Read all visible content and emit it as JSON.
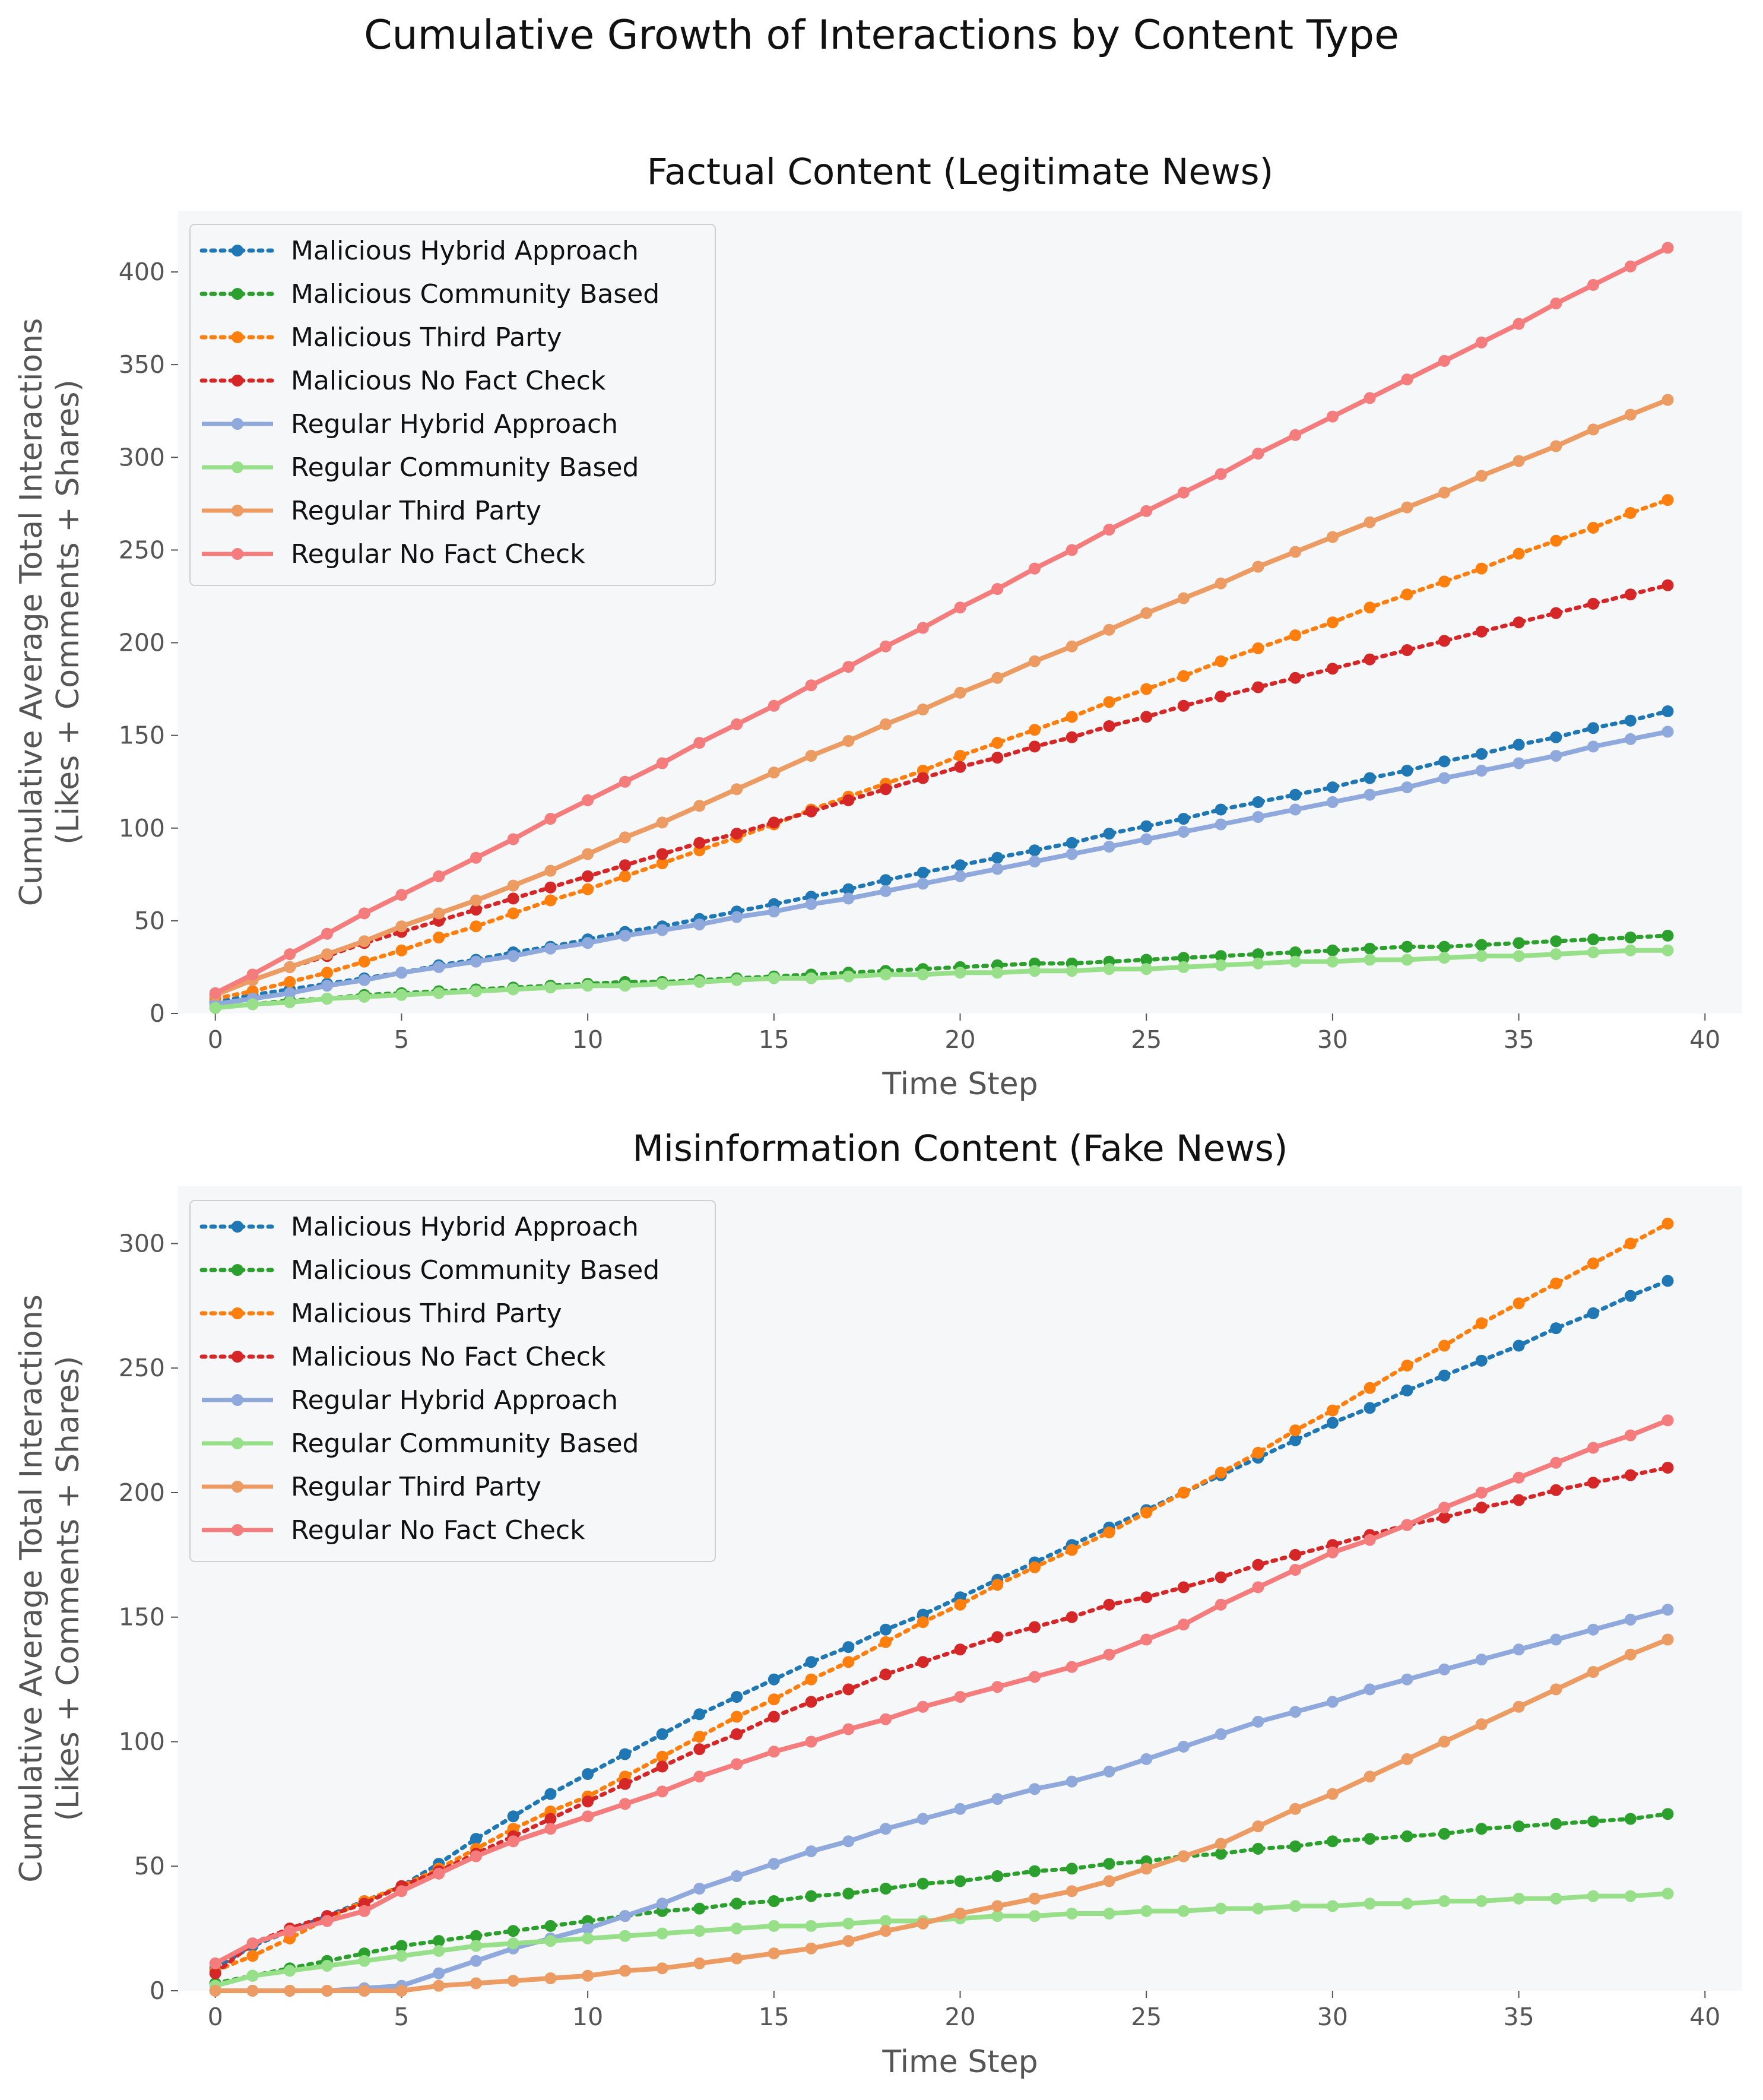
{
  "suptitle": "Cumulative Growth of Interactions by Content Type",
  "chart_data": [
    {
      "type": "line",
      "title": "Factual Content (Legitimate News)",
      "xlabel": "Time Step",
      "ylabel": [
        "Cumulative Average Total Interactions",
        "(Likes + Comments + Shares)"
      ],
      "xlim": [
        -1,
        41
      ],
      "ylim": [
        0,
        433
      ],
      "xticks": [
        0,
        5,
        10,
        15,
        20,
        25,
        30,
        35,
        40
      ],
      "yticks": [
        0,
        50,
        100,
        150,
        200,
        250,
        300,
        350,
        400
      ],
      "grid": false,
      "legend_position": "top-left",
      "x": [
        0,
        1,
        2,
        3,
        4,
        5,
        6,
        7,
        8,
        9,
        10,
        11,
        12,
        13,
        14,
        15,
        16,
        17,
        18,
        19,
        20,
        21,
        22,
        23,
        24,
        25,
        26,
        27,
        28,
        29,
        30,
        31,
        32,
        33,
        34,
        35,
        36,
        37,
        38,
        39
      ],
      "series": [
        {
          "name": "Malicious Hybrid Approach",
          "style": "dotted",
          "color": "#1f77b4",
          "values": [
            6,
            10,
            13,
            16,
            19,
            22,
            26,
            29,
            33,
            36,
            40,
            44,
            47,
            51,
            55,
            59,
            63,
            67,
            72,
            76,
            80,
            84,
            88,
            92,
            97,
            101,
            105,
            110,
            114,
            118,
            122,
            127,
            131,
            136,
            140,
            145,
            149,
            154,
            158,
            163
          ]
        },
        {
          "name": "Malicious Community Based",
          "style": "dotted",
          "color": "#2ca02c",
          "values": [
            3,
            5,
            7,
            8,
            10,
            11,
            12,
            13,
            14,
            15,
            16,
            17,
            17,
            18,
            19,
            20,
            21,
            22,
            23,
            24,
            25,
            26,
            27,
            27,
            28,
            29,
            30,
            31,
            32,
            33,
            34,
            35,
            36,
            36,
            37,
            38,
            39,
            40,
            41,
            42
          ]
        },
        {
          "name": "Malicious Third Party",
          "style": "dotted",
          "color": "#ff7f0e",
          "values": [
            8,
            12,
            17,
            22,
            28,
            34,
            41,
            47,
            54,
            61,
            67,
            74,
            81,
            88,
            95,
            102,
            110,
            117,
            124,
            131,
            139,
            146,
            153,
            160,
            168,
            175,
            182,
            190,
            197,
            204,
            211,
            219,
            226,
            233,
            240,
            248,
            255,
            262,
            270,
            277
          ]
        },
        {
          "name": "Malicious No Fact Check",
          "style": "dotted",
          "color": "#d62728",
          "values": [
            10,
            18,
            25,
            31,
            38,
            44,
            50,
            56,
            62,
            68,
            74,
            80,
            86,
            92,
            97,
            103,
            109,
            115,
            121,
            127,
            133,
            138,
            144,
            149,
            155,
            160,
            166,
            171,
            176,
            181,
            186,
            191,
            196,
            201,
            206,
            211,
            216,
            221,
            226,
            231
          ]
        },
        {
          "name": "Regular Hybrid Approach",
          "style": "solid",
          "color": "#8fa9dc",
          "values": [
            5,
            8,
            11,
            15,
            18,
            22,
            25,
            28,
            31,
            35,
            38,
            42,
            45,
            48,
            52,
            55,
            59,
            62,
            66,
            70,
            74,
            78,
            82,
            86,
            90,
            94,
            98,
            102,
            106,
            110,
            114,
            118,
            122,
            127,
            131,
            135,
            139,
            144,
            148,
            152
          ]
        },
        {
          "name": "Regular Community Based",
          "style": "solid",
          "color": "#98df8a",
          "values": [
            3,
            5,
            6,
            8,
            9,
            10,
            11,
            12,
            13,
            14,
            15,
            15,
            16,
            17,
            18,
            19,
            19,
            20,
            21,
            21,
            22,
            22,
            23,
            23,
            24,
            24,
            25,
            26,
            27,
            28,
            28,
            29,
            29,
            30,
            31,
            31,
            32,
            33,
            34,
            34
          ]
        },
        {
          "name": "Regular Third Party",
          "style": "solid",
          "color": "#ec9b62",
          "values": [
            10,
            18,
            25,
            32,
            39,
            47,
            54,
            61,
            69,
            77,
            86,
            95,
            103,
            112,
            121,
            130,
            139,
            147,
            156,
            164,
            173,
            181,
            190,
            198,
            207,
            216,
            224,
            232,
            241,
            249,
            257,
            265,
            273,
            281,
            290,
            298,
            306,
            315,
            323,
            331
          ]
        },
        {
          "name": "Regular No Fact Check",
          "style": "solid",
          "color": "#f47c7c",
          "values": [
            11,
            21,
            32,
            43,
            54,
            64,
            74,
            84,
            94,
            105,
            115,
            125,
            135,
            146,
            156,
            166,
            177,
            187,
            198,
            208,
            219,
            229,
            240,
            250,
            261,
            271,
            281,
            291,
            302,
            312,
            322,
            332,
            342,
            352,
            362,
            372,
            383,
            393,
            403,
            413
          ]
        }
      ]
    },
    {
      "type": "line",
      "title": "Misinformation Content (Fake News)",
      "xlabel": "Time Step",
      "ylabel": [
        "Cumulative Average Total Interactions",
        "(Likes + Comments + Shares)"
      ],
      "xlim": [
        -1,
        41
      ],
      "ylim": [
        0,
        323
      ],
      "xticks": [
        0,
        5,
        10,
        15,
        20,
        25,
        30,
        35,
        40
      ],
      "yticks": [
        0,
        50,
        100,
        150,
        200,
        250,
        300
      ],
      "grid": false,
      "legend_position": "top-left",
      "x": [
        0,
        1,
        2,
        3,
        4,
        5,
        6,
        7,
        8,
        9,
        10,
        11,
        12,
        13,
        14,
        15,
        16,
        17,
        18,
        19,
        20,
        21,
        22,
        23,
        24,
        25,
        26,
        27,
        28,
        29,
        30,
        31,
        32,
        33,
        34,
        35,
        36,
        37,
        38,
        39
      ],
      "series": [
        {
          "name": "Malicious Hybrid Approach",
          "style": "dotted",
          "color": "#1f77b4",
          "values": [
            9,
            18,
            24,
            30,
            36,
            42,
            51,
            61,
            70,
            79,
            87,
            95,
            103,
            111,
            118,
            125,
            132,
            138,
            145,
            151,
            158,
            165,
            172,
            179,
            186,
            193,
            200,
            207,
            214,
            221,
            228,
            234,
            241,
            247,
            253,
            259,
            266,
            272,
            279,
            285
          ]
        },
        {
          "name": "Malicious Community Based",
          "style": "dotted",
          "color": "#2ca02c",
          "values": [
            3,
            6,
            9,
            12,
            15,
            18,
            20,
            22,
            24,
            26,
            28,
            30,
            32,
            33,
            35,
            36,
            38,
            39,
            41,
            43,
            44,
            46,
            48,
            49,
            51,
            52,
            54,
            55,
            57,
            58,
            60,
            61,
            62,
            63,
            65,
            66,
            67,
            68,
            69,
            71
          ]
        },
        {
          "name": "Malicious Third Party",
          "style": "dotted",
          "color": "#ff7f0e",
          "values": [
            8,
            14,
            21,
            29,
            36,
            42,
            49,
            57,
            65,
            72,
            78,
            86,
            94,
            102,
            110,
            117,
            125,
            132,
            140,
            148,
            155,
            163,
            170,
            177,
            184,
            192,
            200,
            208,
            216,
            225,
            233,
            242,
            251,
            259,
            268,
            276,
            284,
            292,
            300,
            308
          ]
        },
        {
          "name": "Malicious No Fact Check",
          "style": "dotted",
          "color": "#d62728",
          "values": [
            7,
            19,
            25,
            30,
            35,
            42,
            48,
            55,
            62,
            69,
            76,
            83,
            90,
            97,
            103,
            110,
            116,
            121,
            127,
            132,
            137,
            142,
            146,
            150,
            155,
            158,
            162,
            166,
            171,
            175,
            179,
            183,
            187,
            190,
            194,
            197,
            201,
            204,
            207,
            210
          ]
        },
        {
          "name": "Regular Hybrid Approach",
          "style": "solid",
          "color": "#8fa9dc",
          "values": [
            0,
            0,
            0,
            0,
            1,
            2,
            7,
            12,
            17,
            21,
            25,
            30,
            35,
            41,
            46,
            51,
            56,
            60,
            65,
            69,
            73,
            77,
            81,
            84,
            88,
            93,
            98,
            103,
            108,
            112,
            116,
            121,
            125,
            129,
            133,
            137,
            141,
            145,
            149,
            153
          ]
        },
        {
          "name": "Regular Community Based",
          "style": "solid",
          "color": "#98df8a",
          "values": [
            2,
            6,
            8,
            10,
            12,
            14,
            16,
            18,
            19,
            20,
            21,
            22,
            23,
            24,
            25,
            26,
            26,
            27,
            28,
            28,
            29,
            30,
            30,
            31,
            31,
            32,
            32,
            33,
            33,
            34,
            34,
            35,
            35,
            36,
            36,
            37,
            37,
            38,
            38,
            39
          ]
        },
        {
          "name": "Regular Third Party",
          "style": "solid",
          "color": "#ec9b62",
          "values": [
            0,
            0,
            0,
            0,
            0,
            0,
            2,
            3,
            4,
            5,
            6,
            8,
            9,
            11,
            13,
            15,
            17,
            20,
            24,
            27,
            31,
            34,
            37,
            40,
            44,
            49,
            54,
            59,
            66,
            73,
            79,
            86,
            93,
            100,
            107,
            114,
            121,
            128,
            135,
            141
          ]
        },
        {
          "name": "Regular No Fact Check",
          "style": "solid",
          "color": "#f47c7c",
          "values": [
            11,
            19,
            24,
            28,
            32,
            40,
            47,
            54,
            60,
            65,
            70,
            75,
            80,
            86,
            91,
            96,
            100,
            105,
            109,
            114,
            118,
            122,
            126,
            130,
            135,
            141,
            147,
            155,
            162,
            169,
            176,
            181,
            187,
            194,
            200,
            206,
            212,
            218,
            223,
            229
          ]
        }
      ]
    }
  ]
}
